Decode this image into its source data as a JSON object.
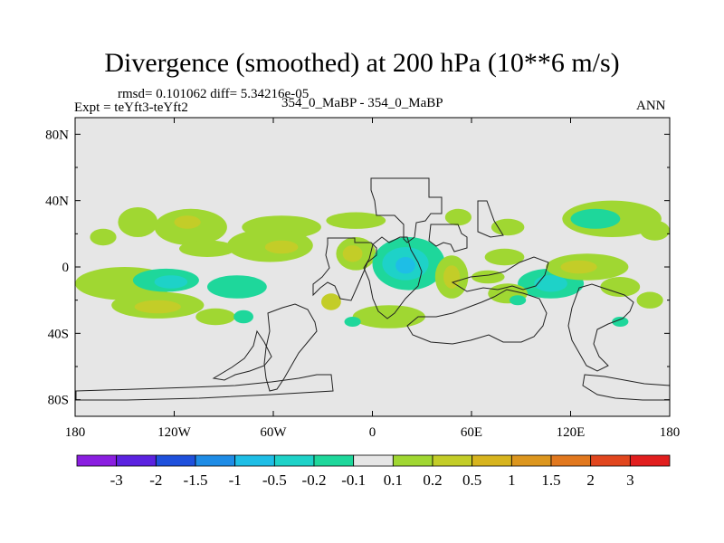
{
  "chart_data": {
    "type": "heatmap",
    "title": "Divergence (smoothed) at 200 hPa (10**6 m/s)",
    "stats_text": "rmsd= 0.101062 diff= 5.34216e-05",
    "left_label": "Expt = teYft3-teYft2",
    "center_label": "354_0_MaBP - 354_0_MaBP",
    "right_label": "ANN",
    "x_ticks": [
      "180",
      "120W",
      "60W",
      "0",
      "60E",
      "120E",
      "180"
    ],
    "x_range": [
      -180,
      180
    ],
    "y_ticks": [
      "80N",
      "40N",
      "0",
      "40S",
      "80S"
    ],
    "y_range": [
      -90,
      90
    ],
    "colorbar": {
      "colors": [
        "#8a1ee0",
        "#5b22e0",
        "#1e50dc",
        "#1e8ce6",
        "#1ebee6",
        "#1ed2c8",
        "#1ed79b",
        "#e6e6e6",
        "#a0d732",
        "#c3cd28",
        "#d7b41e",
        "#dc961e",
        "#e1781e",
        "#e1461e",
        "#e11e1e"
      ],
      "labels": [
        "-3",
        "-2",
        "-1.5",
        "-1",
        "-0.5",
        "-0.2",
        "-0.1",
        "0.1",
        "0.2",
        "0.5",
        "1",
        "1.5",
        "2",
        "3"
      ]
    },
    "regions": [
      {
        "lon": -163,
        "lat": 18,
        "rx": 8,
        "ry": 5,
        "level": 8
      },
      {
        "lon": -142,
        "lat": 27,
        "rx": 12,
        "ry": 9,
        "level": 8
      },
      {
        "lon": -110,
        "lat": 24,
        "rx": 22,
        "ry": 11,
        "level": 8
      },
      {
        "lon": -112,
        "lat": 27,
        "rx": 8,
        "ry": 4,
        "level": 9
      },
      {
        "lon": -100,
        "lat": 11,
        "rx": 17,
        "ry": 5,
        "level": 8
      },
      {
        "lon": -55,
        "lat": 24,
        "rx": 24,
        "ry": 7,
        "level": 8
      },
      {
        "lon": -62,
        "lat": 13,
        "rx": 26,
        "ry": 10,
        "level": 8
      },
      {
        "lon": -55,
        "lat": 12,
        "rx": 10,
        "ry": 4,
        "level": 9
      },
      {
        "lon": -150,
        "lat": -10,
        "rx": 30,
        "ry": 10,
        "level": 8
      },
      {
        "lon": -125,
        "lat": -8,
        "rx": 20,
        "ry": 7,
        "level": 6
      },
      {
        "lon": -122,
        "lat": -9,
        "rx": 10,
        "ry": 4,
        "level": 5
      },
      {
        "lon": -82,
        "lat": -12,
        "rx": 18,
        "ry": 7,
        "level": 6
      },
      {
        "lon": -130,
        "lat": -23,
        "rx": 28,
        "ry": 8,
        "level": 8
      },
      {
        "lon": -130,
        "lat": -24,
        "rx": 14,
        "ry": 4,
        "level": 9
      },
      {
        "lon": -95,
        "lat": -30,
        "rx": 12,
        "ry": 5,
        "level": 8
      },
      {
        "lon": -78,
        "lat": -30,
        "rx": 6,
        "ry": 4,
        "level": 6
      },
      {
        "lon": -10,
        "lat": 28,
        "rx": 18,
        "ry": 5,
        "level": 8
      },
      {
        "lon": -10,
        "lat": 8,
        "rx": 12,
        "ry": 10,
        "level": 8
      },
      {
        "lon": -12,
        "lat": 8,
        "rx": 6,
        "ry": 5,
        "level": 9
      },
      {
        "lon": 22,
        "lat": 2,
        "rx": 22,
        "ry": 16,
        "level": 6
      },
      {
        "lon": 20,
        "lat": 2,
        "rx": 14,
        "ry": 10,
        "level": 5
      },
      {
        "lon": 20,
        "lat": 1,
        "rx": 6,
        "ry": 5,
        "level": 4
      },
      {
        "lon": 48,
        "lat": -6,
        "rx": 10,
        "ry": 13,
        "level": 8
      },
      {
        "lon": 48,
        "lat": -6,
        "rx": 5,
        "ry": 7,
        "level": 9
      },
      {
        "lon": 10,
        "lat": -30,
        "rx": 22,
        "ry": 7,
        "level": 8
      },
      {
        "lon": -25,
        "lat": -21,
        "rx": 6,
        "ry": 5,
        "level": 9
      },
      {
        "lon": -12,
        "lat": -33,
        "rx": 5,
        "ry": 3,
        "level": 6
      },
      {
        "lon": 52,
        "lat": 30,
        "rx": 8,
        "ry": 5,
        "level": 8
      },
      {
        "lon": 82,
        "lat": 24,
        "rx": 10,
        "ry": 5,
        "level": 8
      },
      {
        "lon": 80,
        "lat": 6,
        "rx": 12,
        "ry": 5,
        "level": 8
      },
      {
        "lon": 70,
        "lat": -6,
        "rx": 10,
        "ry": 4,
        "level": 8
      },
      {
        "lon": 108,
        "lat": -10,
        "rx": 20,
        "ry": 9,
        "level": 6
      },
      {
        "lon": 108,
        "lat": -10,
        "rx": 10,
        "ry": 5,
        "level": 5
      },
      {
        "lon": 82,
        "lat": -16,
        "rx": 12,
        "ry": 6,
        "level": 8
      },
      {
        "lon": 88,
        "lat": -20,
        "rx": 5,
        "ry": 3,
        "level": 6
      },
      {
        "lon": 130,
        "lat": 0,
        "rx": 25,
        "ry": 8,
        "level": 8
      },
      {
        "lon": 125,
        "lat": 0,
        "rx": 11,
        "ry": 4,
        "level": 9
      },
      {
        "lon": 150,
        "lat": -12,
        "rx": 12,
        "ry": 6,
        "level": 8
      },
      {
        "lon": 145,
        "lat": 29,
        "rx": 30,
        "ry": 11,
        "level": 8
      },
      {
        "lon": 135,
        "lat": 29,
        "rx": 15,
        "ry": 6,
        "level": 6
      },
      {
        "lon": 171,
        "lat": 22,
        "rx": 9,
        "ry": 6,
        "level": 8
      },
      {
        "lon": 168,
        "lat": -20,
        "rx": 8,
        "ry": 5,
        "level": 8
      },
      {
        "lon": 150,
        "lat": -33,
        "rx": 5,
        "ry": 3,
        "level": 6
      }
    ]
  }
}
